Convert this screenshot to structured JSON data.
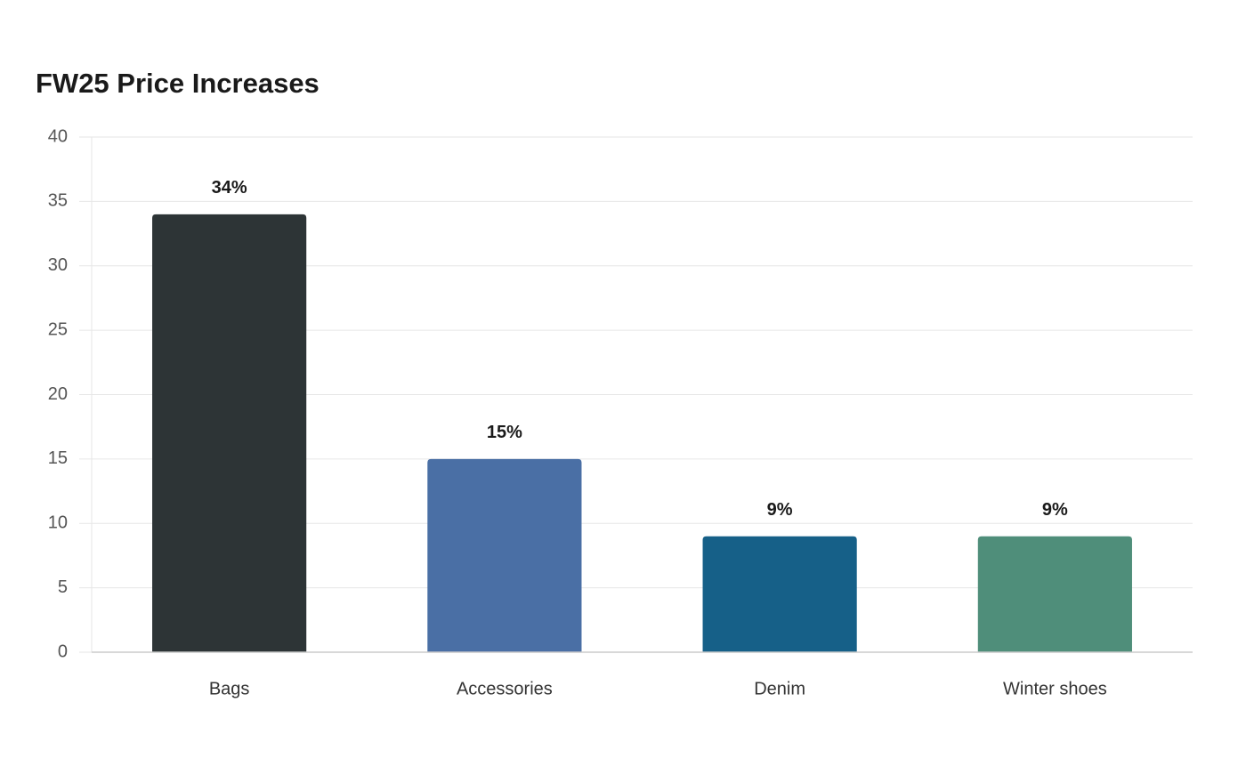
{
  "chart_data": {
    "type": "bar",
    "title": "FW25 Price Increases",
    "categories": [
      "Bags",
      "Accessories",
      "Denim",
      "Winter shoes"
    ],
    "values": [
      34,
      15,
      9,
      9
    ],
    "value_labels": [
      "34%",
      "15%",
      "9%",
      "9%"
    ],
    "colors": [
      "#2d3436",
      "#4a6fa5",
      "#166088",
      "#4f8e7a"
    ],
    "ylim": [
      0,
      40
    ],
    "yticks": [
      0,
      5,
      10,
      15,
      20,
      25,
      30,
      35,
      40
    ],
    "grid": true
  }
}
